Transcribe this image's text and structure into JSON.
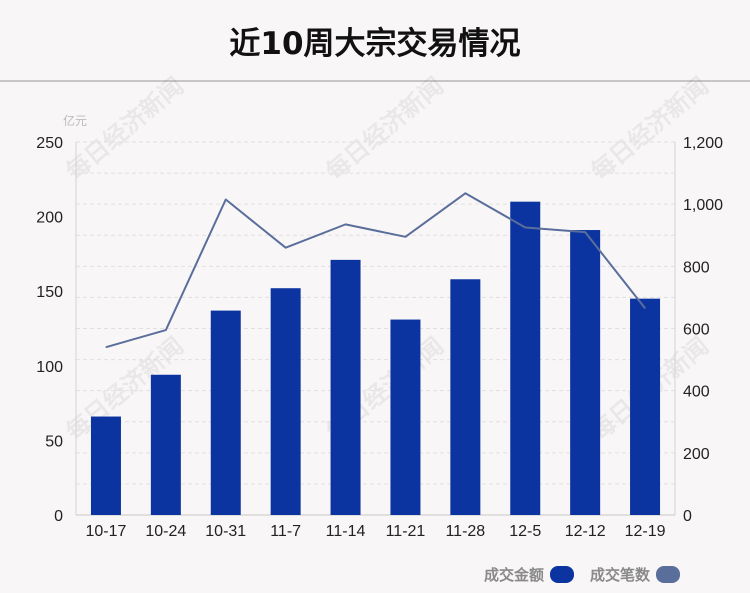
{
  "title": "近10周大宗交易情况",
  "watermark": "每日经济新闻",
  "chart_data": {
    "type": "bar+line",
    "categories": [
      "10-17",
      "10-24",
      "10-31",
      "11-7",
      "11-14",
      "11-21",
      "11-28",
      "12-5",
      "12-12",
      "12-19"
    ],
    "series": [
      {
        "name": "成交金额",
        "type": "bar",
        "axis": "left",
        "unit": "亿元",
        "color": "#0c34a0",
        "values": [
          66,
          94,
          137,
          152,
          171,
          131,
          158,
          210,
          191,
          145
        ]
      },
      {
        "name": "成交笔数",
        "type": "line",
        "axis": "right",
        "color": "#5a6e9c",
        "values": [
          540,
          595,
          1015,
          860,
          935,
          895,
          1035,
          925,
          910,
          665
        ]
      }
    ],
    "left_axis": {
      "label": "亿元",
      "ylim": [
        0,
        250
      ],
      "ticks": [
        "0",
        "50",
        "100",
        "150",
        "200",
        "250"
      ]
    },
    "right_axis": {
      "label": "",
      "ylim": [
        0,
        1200
      ],
      "ticks": [
        "0",
        "200",
        "400",
        "600",
        "800",
        "1,000",
        "1,200"
      ]
    },
    "grid": true,
    "legend": "bottom-right"
  }
}
